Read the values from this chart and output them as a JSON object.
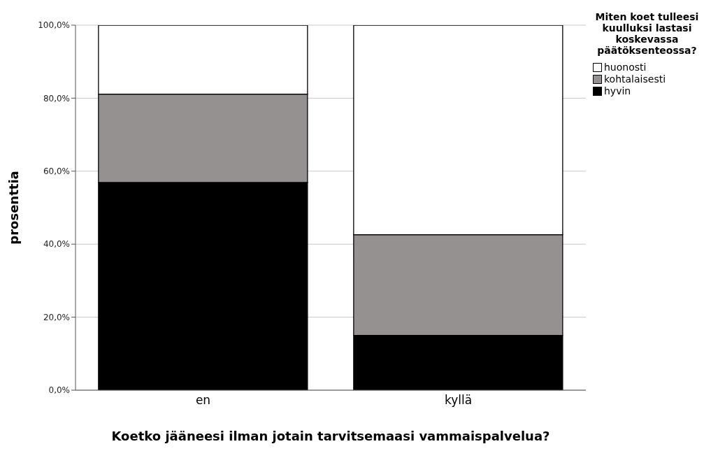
{
  "chart_data": {
    "type": "bar",
    "stacked": true,
    "xlabel": "Koetko jääneesi ilman jotain tarvitsemaasi vammaispalvelua?",
    "ylabel": "prosenttia",
    "legend_title": "Miten koet tulleesi kuulluksi lastasi koskevassa päätöksenteossa?",
    "categories": [
      "en",
      "kyllä"
    ],
    "series": [
      {
        "name": "hyvin",
        "color": "#000000",
        "values": [
          56.9,
          15.0
        ]
      },
      {
        "name": "kohtalaisesti",
        "color": "#959190",
        "values": [
          24.2,
          27.6
        ]
      },
      {
        "name": "huonosti",
        "color": "#ffffff",
        "values": [
          18.9,
          57.4
        ]
      }
    ],
    "ylim": [
      0,
      100
    ],
    "yticks": [
      {
        "value": 0,
        "label": "0,0%"
      },
      {
        "value": 20,
        "label": "20,0%"
      },
      {
        "value": 40,
        "label": "40,0%"
      },
      {
        "value": 60,
        "label": "60,0%"
      },
      {
        "value": 80,
        "label": "80,0%"
      },
      {
        "value": 100,
        "label": "100,0%"
      }
    ],
    "grid": "y",
    "legend": "top right"
  }
}
